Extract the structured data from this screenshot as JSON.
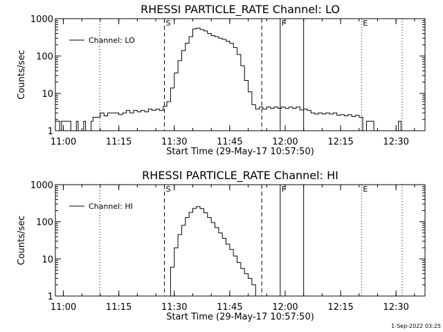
{
  "chart_data": [
    {
      "type": "line",
      "title": "RHESSI PARTICLE_RATE Channel: LO",
      "xlabel": "Start Time (29-May-17 10:57:50)",
      "ylabel": "Counts/sec",
      "yscale": "log",
      "xlim": [
        "10:57:50",
        "12:37:50"
      ],
      "ylim": [
        1,
        1000
      ],
      "xticks": [
        "11:00",
        "11:15",
        "11:30",
        "11:45",
        "12:00",
        "12:15",
        "12:30"
      ],
      "yticks": [
        "1",
        "10",
        "100",
        "1000"
      ],
      "legend": {
        "position": "top-left",
        "entries": [
          "Channel: LO"
        ]
      },
      "series": [
        {
          "name": "Channel: LO",
          "x": [
            "10:57:50",
            "10:59:00",
            "10:59:30",
            "11:01:00",
            "11:02:00",
            "11:03:30",
            "11:04:00",
            "11:05:30",
            "11:06:00",
            "11:07:30",
            "11:08:00",
            "11:09:00",
            "11:10:00",
            "11:11:00",
            "11:12:00",
            "11:13:00",
            "11:14:00",
            "11:15:00",
            "11:16:00",
            "11:17:00",
            "11:18:00",
            "11:19:00",
            "11:20:00",
            "11:21:00",
            "11:22:00",
            "11:23:00",
            "11:24:00",
            "11:25:00",
            "11:26:00",
            "11:27:00",
            "11:28:00",
            "11:29:00",
            "11:30:00",
            "11:31:00",
            "11:32:00",
            "11:33:00",
            "11:34:00",
            "11:35:00",
            "11:36:00",
            "11:37:00",
            "11:38:00",
            "11:39:00",
            "11:40:00",
            "11:41:00",
            "11:42:00",
            "11:43:00",
            "11:44:00",
            "11:45:00",
            "11:46:00",
            "11:47:00",
            "11:48:00",
            "11:49:00",
            "11:50:00",
            "11:51:00",
            "11:52:00",
            "11:53:00",
            "11:54:00",
            "11:55:00",
            "11:56:00",
            "11:57:00",
            "11:58:00",
            "11:59:00",
            "12:00:00",
            "12:01:00",
            "12:02:00",
            "12:03:00",
            "12:04:00",
            "12:05:00",
            "12:06:00",
            "12:07:00",
            "12:08:00",
            "12:09:00",
            "12:10:00",
            "12:11:00",
            "12:12:00",
            "12:13:00",
            "12:14:00",
            "12:15:00",
            "12:16:00",
            "12:17:00",
            "12:18:00",
            "12:19:00",
            "12:20:00",
            "12:21:00",
            "12:22:00",
            "12:23:00",
            "12:24:00",
            "12:25:00",
            "12:26:00",
            "12:27:00",
            "12:28:00",
            "12:29:00",
            "12:30:00",
            "12:30:40",
            "12:31:20"
          ],
          "values": [
            1.8,
            1.0,
            1.8,
            1.8,
            1.0,
            1.8,
            1.0,
            1.8,
            1.0,
            1.8,
            2.3,
            2.3,
            3.0,
            2.5,
            3.0,
            3.0,
            3.0,
            2.7,
            3.0,
            3.5,
            3.0,
            3.5,
            3.2,
            3.5,
            3.2,
            3.8,
            3.5,
            3.8,
            3.5,
            4.5,
            6.0,
            14,
            35,
            75,
            140,
            220,
            330,
            530,
            560,
            510,
            470,
            400,
            350,
            330,
            300,
            280,
            250,
            220,
            170,
            110,
            55,
            22,
            11,
            5.0,
            3.8,
            4.3,
            3.8,
            4.3,
            4.0,
            4.3,
            4.0,
            4.3,
            4.0,
            4.3,
            4.0,
            4.3,
            3.6,
            3.8,
            3.5,
            3.0,
            2.8,
            3.0,
            2.8,
            3.0,
            2.8,
            3.0,
            2.6,
            2.7,
            2.5,
            2.7,
            2.4,
            2.6,
            2.3,
            1.0,
            1.8,
            1.8,
            1.0,
            1.0,
            1.0,
            1.0,
            1.0,
            1.0,
            1.0,
            1.8,
            1.0
          ]
        }
      ],
      "markers": [
        {
          "time": "11:09:50",
          "style": "dotted",
          "label": ""
        },
        {
          "time": "11:27:20",
          "style": "dashed",
          "label": "S"
        },
        {
          "time": "11:53:40",
          "style": "dashed",
          "label": ""
        },
        {
          "time": "11:58:40",
          "style": "solid",
          "label": "F"
        },
        {
          "time": "12:05:00",
          "style": "solid",
          "label": ""
        },
        {
          "time": "12:20:40",
          "style": "dotted",
          "label": "E"
        },
        {
          "time": "12:31:40",
          "style": "dotted",
          "label": ""
        }
      ]
    },
    {
      "type": "line",
      "title": "RHESSI PARTICLE_RATE Channel: HI",
      "xlabel": "Start Time (29-May-17 10:57:50)",
      "ylabel": "Counts/sec",
      "yscale": "log",
      "xlim": [
        "10:57:50",
        "12:37:50"
      ],
      "ylim": [
        1,
        1000
      ],
      "xticks": [
        "11:00",
        "11:15",
        "11:30",
        "11:45",
        "12:00",
        "12:15",
        "12:30"
      ],
      "yticks": [
        "1",
        "10",
        "100",
        "1000"
      ],
      "legend": {
        "position": "top-left",
        "entries": [
          "Channel: HI"
        ]
      },
      "series": [
        {
          "name": "Channel: HI",
          "x": [
            "11:28:00",
            "11:29:00",
            "11:30:00",
            "11:31:00",
            "11:32:00",
            "11:33:00",
            "11:34:00",
            "11:35:00",
            "11:36:00",
            "11:37:00",
            "11:38:00",
            "11:39:00",
            "11:40:00",
            "11:41:00",
            "11:42:00",
            "11:43:00",
            "11:44:00",
            "11:45:00",
            "11:46:00",
            "11:47:00",
            "11:48:00",
            "11:49:00",
            "11:50:00",
            "11:51:00",
            "11:52:00"
          ],
          "values": [
            1.0,
            6.0,
            20,
            45,
            80,
            130,
            180,
            230,
            255,
            225,
            175,
            130,
            95,
            70,
            50,
            36,
            25,
            18,
            12,
            8,
            5.5,
            4.0,
            3.0,
            2.0,
            1.0
          ]
        }
      ],
      "markers": [
        {
          "time": "11:09:50",
          "style": "dotted",
          "label": ""
        },
        {
          "time": "11:27:20",
          "style": "dashed",
          "label": "S"
        },
        {
          "time": "11:53:40",
          "style": "dashed",
          "label": ""
        },
        {
          "time": "11:58:40",
          "style": "solid",
          "label": "F"
        },
        {
          "time": "12:05:00",
          "style": "solid",
          "label": ""
        },
        {
          "time": "12:20:40",
          "style": "dotted",
          "label": "E"
        },
        {
          "time": "12:31:40",
          "style": "dotted",
          "label": ""
        }
      ]
    }
  ],
  "footer": {
    "timestamp": "1-Sep-2022 03:25"
  }
}
